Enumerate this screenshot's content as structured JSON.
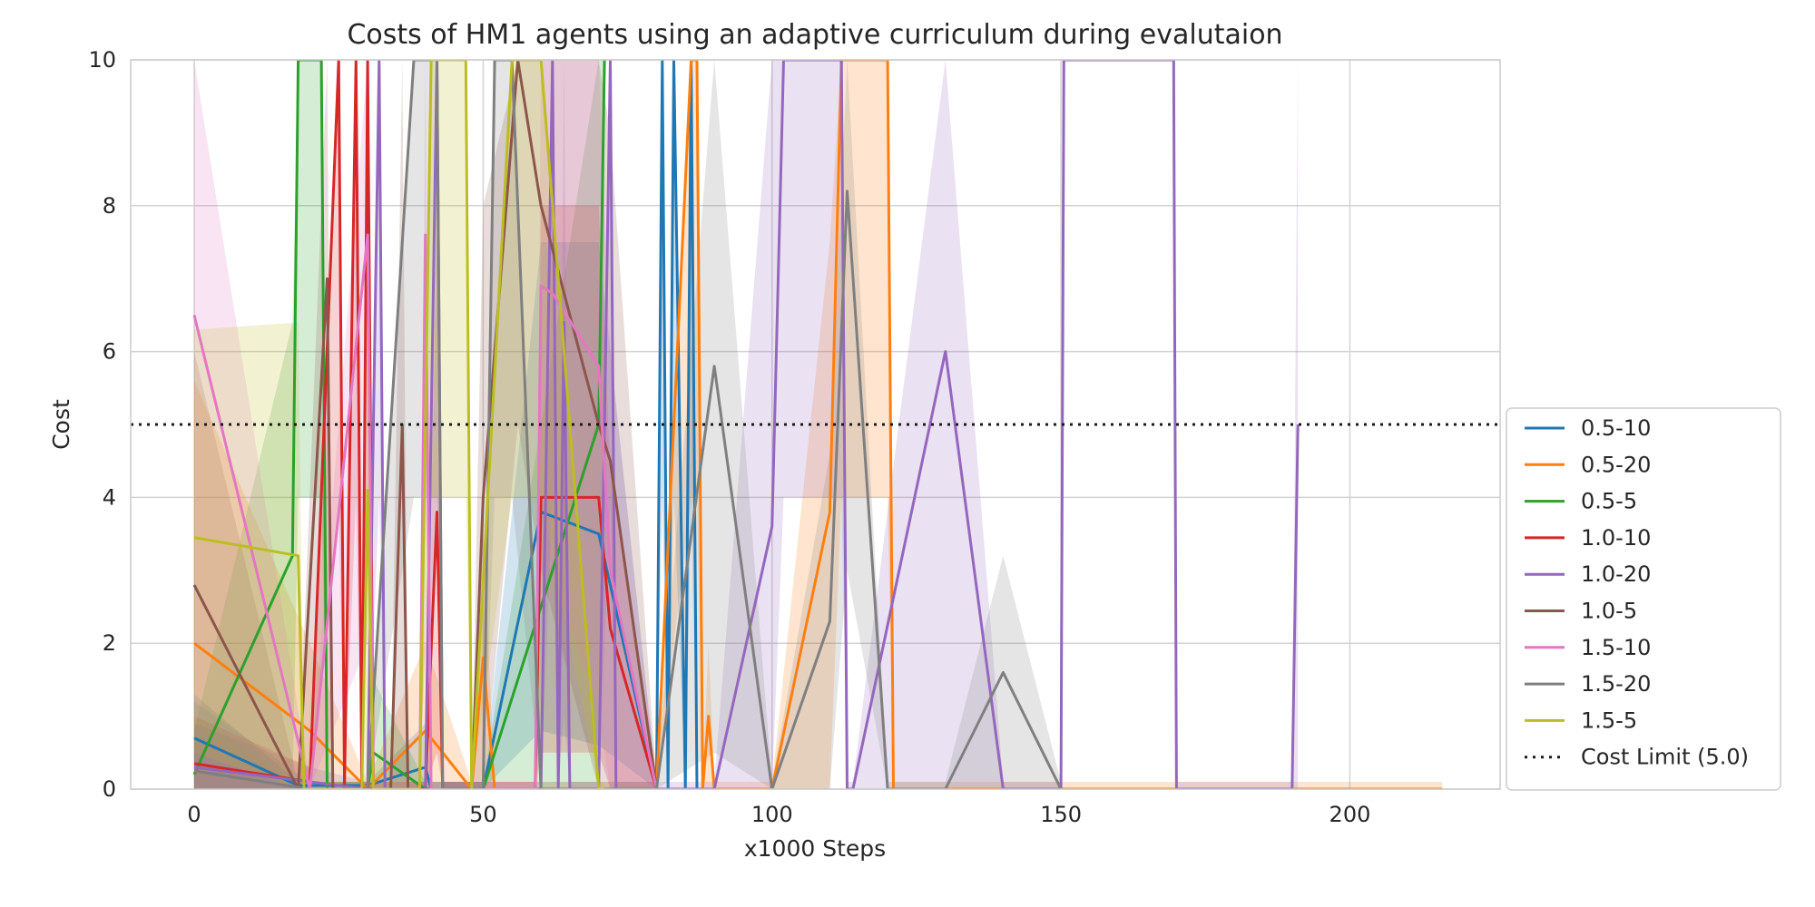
{
  "chart_data": {
    "type": "line",
    "title": "Costs of HM1 agents using an adaptive curriculum during evalutaion",
    "xlabel": "x1000 Steps",
    "ylabel": "Cost",
    "xlim": [
      -11,
      226
    ],
    "ylim": [
      0,
      10
    ],
    "x_ticks": [
      0,
      50,
      100,
      150,
      200
    ],
    "y_ticks": [
      0,
      2,
      4,
      6,
      8,
      10
    ],
    "grid": true,
    "legend_position": "outside right, lower",
    "confidence_band": true,
    "series": [
      {
        "name": "0.5-10",
        "color": "#1f77b4",
        "x": [
          0,
          18,
          30,
          40,
          41,
          50,
          60,
          70,
          80,
          81,
          82,
          83,
          85,
          86,
          87
        ],
        "y": [
          0.7,
          0.05,
          0.05,
          0.3,
          0.0,
          0.0,
          3.8,
          3.5,
          0.0,
          10,
          0.0,
          10,
          0.0,
          10,
          0.0
        ],
        "lower": [
          0,
          0,
          0,
          0,
          0,
          0,
          0.8,
          0.6,
          0,
          4,
          0,
          4,
          0,
          4,
          0
        ],
        "upper": [
          1.3,
          0.1,
          0.1,
          0.9,
          0.1,
          0.1,
          7.5,
          7.5,
          0.1,
          10,
          0.1,
          10,
          0.1,
          10,
          0.1
        ]
      },
      {
        "name": "0.5-20",
        "color": "#ff7f0e",
        "x": [
          0,
          20,
          30,
          40,
          48,
          50,
          52,
          60,
          70,
          80,
          86,
          87,
          88,
          89,
          90,
          100,
          110,
          112,
          118,
          120,
          121,
          130,
          150,
          190,
          216
        ],
        "y": [
          2.0,
          0.8,
          0.0,
          0.8,
          0.0,
          1.8,
          0.0,
          0.0,
          0.0,
          0.0,
          10,
          10,
          0.0,
          1.0,
          0.0,
          0.0,
          3.8,
          10,
          10,
          10,
          0.0,
          0.0,
          0.0,
          0.0,
          0.0
        ],
        "lower": [
          0,
          0,
          0,
          0,
          0,
          0,
          0,
          0,
          0,
          0,
          4,
          4,
          0,
          0,
          0,
          0,
          0,
          4,
          4,
          4,
          0,
          0,
          0,
          0,
          0
        ],
        "upper": [
          5.6,
          2.0,
          0.1,
          2.0,
          0.1,
          3.5,
          0.1,
          0.1,
          0.1,
          0.1,
          10,
          10,
          0.1,
          2.0,
          0.1,
          0.1,
          7.5,
          10,
          10,
          10,
          0.1,
          0.1,
          0.1,
          0.1,
          0.1
        ]
      },
      {
        "name": "0.5-5",
        "color": "#2ca02c",
        "x": [
          0,
          17,
          18,
          22,
          23,
          30,
          31,
          40,
          50,
          60,
          70,
          71
        ],
        "y": [
          0.2,
          3.2,
          10,
          10,
          0.0,
          0.0,
          0.5,
          0.0,
          0.0,
          2.5,
          5.0,
          10
        ],
        "lower": [
          0,
          0,
          4,
          4,
          0,
          0,
          0,
          0,
          0,
          0,
          0,
          4
        ],
        "upper": [
          0.8,
          6.4,
          10,
          10,
          0.1,
          0.1,
          1.5,
          0.1,
          0.1,
          5.0,
          10,
          10
        ]
      },
      {
        "name": "1.0-10",
        "color": "#d62728",
        "x": [
          0,
          20,
          25,
          26,
          28,
          29,
          30,
          31,
          40,
          42,
          43,
          50,
          59,
          60,
          70,
          72,
          80
        ],
        "y": [
          0.35,
          0.1,
          10,
          0.0,
          10,
          0.0,
          10,
          0.0,
          0.0,
          3.8,
          0.0,
          0.0,
          0.0,
          4.0,
          4.0,
          2.2,
          0.0
        ],
        "lower": [
          0,
          0,
          4,
          0,
          4,
          0,
          4,
          0,
          0,
          0.5,
          0,
          0,
          0,
          0.5,
          0.5,
          0,
          0
        ],
        "upper": [
          1.0,
          0.3,
          10,
          0.1,
          10,
          0.1,
          10,
          0.1,
          0.1,
          7.6,
          0.1,
          0.1,
          0.1,
          8.0,
          8.0,
          4.4,
          0.1
        ]
      },
      {
        "name": "1.0-20",
        "color": "#9467bd",
        "x": [
          0,
          20,
          30,
          32,
          33,
          40,
          42,
          43,
          60,
          62,
          63,
          64,
          65,
          70,
          72,
          73,
          80,
          90,
          100,
          102,
          110,
          112,
          113,
          114,
          130,
          140,
          150,
          150.5,
          169.5,
          170,
          190,
          191
        ],
        "y": [
          0.3,
          0.1,
          0.0,
          10,
          0.0,
          0.0,
          10,
          0.0,
          0.0,
          10,
          0.0,
          6.4,
          0.0,
          0.0,
          10,
          0.0,
          0.0,
          0.0,
          3.6,
          10,
          10,
          10,
          0.0,
          0.0,
          6.0,
          0.0,
          0.0,
          10,
          10,
          0.0,
          0.0,
          5.0
        ],
        "lower": [
          0,
          0,
          0,
          4,
          0,
          0,
          4,
          0,
          0,
          4,
          0,
          1,
          0,
          0,
          4,
          0,
          0,
          0,
          0,
          4,
          4,
          4,
          0,
          0,
          0,
          0,
          0,
          10,
          10,
          0,
          0,
          0
        ],
        "upper": [
          0.9,
          0.3,
          0.1,
          10,
          0.1,
          0.1,
          10,
          0.1,
          0.1,
          10,
          0.1,
          10,
          0.1,
          0.1,
          10,
          0.1,
          0.1,
          0.1,
          10,
          10,
          10,
          10,
          0.1,
          0.1,
          10,
          0.1,
          0.1,
          10,
          10,
          0.1,
          0.1,
          10
        ]
      },
      {
        "name": "1.0-5",
        "color": "#8c564b",
        "x": [
          0,
          18,
          23,
          24,
          34,
          36,
          37,
          48,
          50,
          56,
          60,
          70,
          72,
          80
        ],
        "y": [
          2.8,
          0.0,
          7.0,
          0.0,
          0.0,
          5.0,
          0.0,
          0.0,
          4.0,
          10,
          8.0,
          5.0,
          4.5,
          0.0
        ],
        "lower": [
          0,
          0,
          0,
          0,
          0,
          0,
          0,
          0,
          0,
          5,
          3,
          0,
          0,
          0
        ],
        "upper": [
          6.0,
          0.1,
          10,
          0.1,
          0.1,
          10,
          0.1,
          0.1,
          8.0,
          10,
          10,
          10,
          9.0,
          0.1
        ]
      },
      {
        "name": "1.5-10",
        "color": "#e377c2",
        "x": [
          0,
          20,
          30,
          31,
          39,
          40,
          41,
          59,
          60,
          62,
          70,
          72,
          80
        ],
        "y": [
          6.5,
          0.0,
          7.6,
          0.0,
          0.0,
          7.6,
          0.0,
          0.0,
          6.9,
          6.8,
          5.8,
          3.0,
          0.0
        ],
        "lower": [
          1,
          0,
          2,
          0,
          0,
          2,
          0,
          0,
          3,
          3,
          1,
          0,
          0
        ],
        "upper": [
          10,
          0.1,
          10,
          0.1,
          0.1,
          10,
          0.1,
          0.1,
          10,
          10,
          10,
          6.0,
          0.1
        ]
      },
      {
        "name": "1.5-20",
        "color": "#7f7f7f",
        "x": [
          0,
          20,
          30,
          38,
          42,
          43,
          50,
          52,
          55,
          60,
          70,
          80,
          90,
          100,
          110,
          113,
          120,
          130,
          140,
          150
        ],
        "y": [
          0.25,
          0.0,
          0.0,
          10,
          10,
          0.0,
          0.0,
          10,
          10,
          0.0,
          0.0,
          0.0,
          5.8,
          0.0,
          2.3,
          8.2,
          0.0,
          0.0,
          1.6,
          0.0
        ],
        "lower": [
          0,
          0,
          0,
          4,
          4,
          0,
          0,
          4,
          4,
          0,
          0,
          0,
          0.5,
          0,
          0,
          3,
          0,
          0,
          0,
          0
        ],
        "upper": [
          1.2,
          0.1,
          0.1,
          10,
          10,
          0.1,
          0.1,
          10,
          10,
          0.1,
          0.1,
          0.1,
          10,
          0.1,
          4.6,
          10,
          0.1,
          0.1,
          3.2,
          0.1
        ]
      },
      {
        "name": "1.5-5",
        "color": "#bcbd22",
        "x": [
          0,
          18,
          19,
          29,
          30,
          31,
          39,
          41,
          47,
          48,
          55,
          60,
          70,
          71
        ],
        "y": [
          3.45,
          3.2,
          0.0,
          0.0,
          4.1,
          0.0,
          0.0,
          10,
          10,
          0.0,
          10,
          10,
          0.0,
          0.0
        ],
        "lower": [
          0.5,
          0,
          0,
          0,
          0,
          0,
          0,
          4,
          4,
          0,
          4,
          4,
          0,
          0
        ],
        "upper": [
          6.3,
          6.4,
          0.1,
          0.1,
          8.2,
          0.1,
          0.1,
          10,
          10,
          0.1,
          10,
          10,
          0.1,
          0.1
        ]
      }
    ],
    "reference_line": {
      "name": "Cost Limit (5.0)",
      "y": 5.0,
      "color": "#1a1a1a",
      "style": "dotted"
    }
  }
}
